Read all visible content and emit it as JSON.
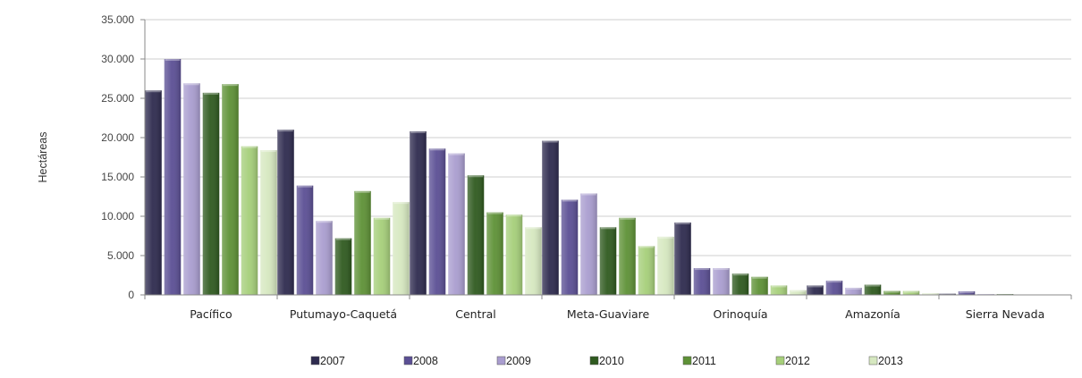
{
  "chart_data": {
    "type": "bar",
    "title": "",
    "ylabel": "Hectáreas",
    "xlabel": "",
    "ylim": [
      0,
      35000
    ],
    "yticks": [
      0,
      5000,
      10000,
      15000,
      20000,
      25000,
      30000,
      35000
    ],
    "ytick_labels": [
      "0",
      "5.000",
      "10.000",
      "15.000",
      "20.000",
      "25.000",
      "30.000",
      "35.000"
    ],
    "grid": true,
    "legend_position": "bottom",
    "categories": [
      "Pacífico",
      "Putumayo-Caquetá",
      "Central",
      "Meta-Guaviare",
      "Orinoquía",
      "Amazonía",
      "Sierra Nevada"
    ],
    "series": [
      {
        "name": "2007",
        "color": "#2e2b4f",
        "values": [
          26000,
          21000,
          20800,
          19600,
          9200,
          1200,
          150
        ]
      },
      {
        "name": "2008",
        "color": "#5b4f94",
        "values": [
          30000,
          13900,
          18600,
          12100,
          3400,
          1800,
          450
        ]
      },
      {
        "name": "2009",
        "color": "#a99dcf",
        "values": [
          26900,
          9400,
          18000,
          12900,
          3400,
          900,
          100
        ]
      },
      {
        "name": "2010",
        "color": "#2f5a1f",
        "values": [
          25700,
          7200,
          15200,
          8600,
          2700,
          1300,
          100
        ]
      },
      {
        "name": "2011",
        "color": "#5e9136",
        "values": [
          26800,
          13200,
          10500,
          9800,
          2300,
          500,
          50
        ]
      },
      {
        "name": "2012",
        "color": "#a6cf7a",
        "values": [
          18900,
          9800,
          10200,
          6200,
          1200,
          500,
          50
        ]
      },
      {
        "name": "2013",
        "color": "#d6e8c0",
        "values": [
          18400,
          11800,
          8600,
          7400,
          600,
          200,
          50
        ]
      }
    ]
  }
}
